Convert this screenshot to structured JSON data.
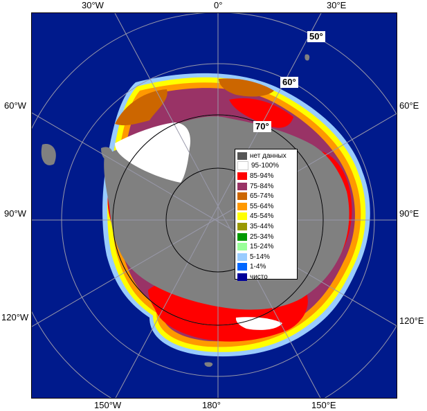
{
  "longitude_labels": {
    "top": [
      "30°W",
      "0°",
      "30°E"
    ],
    "left": [
      "60°W",
      "90°W",
      "120°W"
    ],
    "right": [
      "60°E",
      "90°E",
      "120°E"
    ],
    "bottom": [
      "150°W",
      "180°",
      "150°E"
    ]
  },
  "latitude_labels": [
    "50°",
    "60°",
    "70°"
  ],
  "legend": {
    "items": [
      {
        "label": "нет данных",
        "color": "#555555"
      },
      {
        "label": "95-100%",
        "color": "#ffffff"
      },
      {
        "label": "85-94%",
        "color": "#ff0000"
      },
      {
        "label": "75-84%",
        "color": "#993366"
      },
      {
        "label": "65-74%",
        "color": "#cc6600"
      },
      {
        "label": "55-64%",
        "color": "#ff9900"
      },
      {
        "label": "45-54%",
        "color": "#ffff00"
      },
      {
        "label": "35-44%",
        "color": "#999900"
      },
      {
        "label": "25-34%",
        "color": "#009900"
      },
      {
        "label": "15-24%",
        "color": "#99ff99"
      },
      {
        "label": "5-14%",
        "color": "#99ccff"
      },
      {
        "label": "1-4%",
        "color": "#0066ff"
      },
      {
        "label": "чисто",
        "color": "#000099"
      }
    ]
  },
  "colors": {
    "open_water": "#001a8c",
    "land": "#808080",
    "graticule": "#9999aa"
  }
}
